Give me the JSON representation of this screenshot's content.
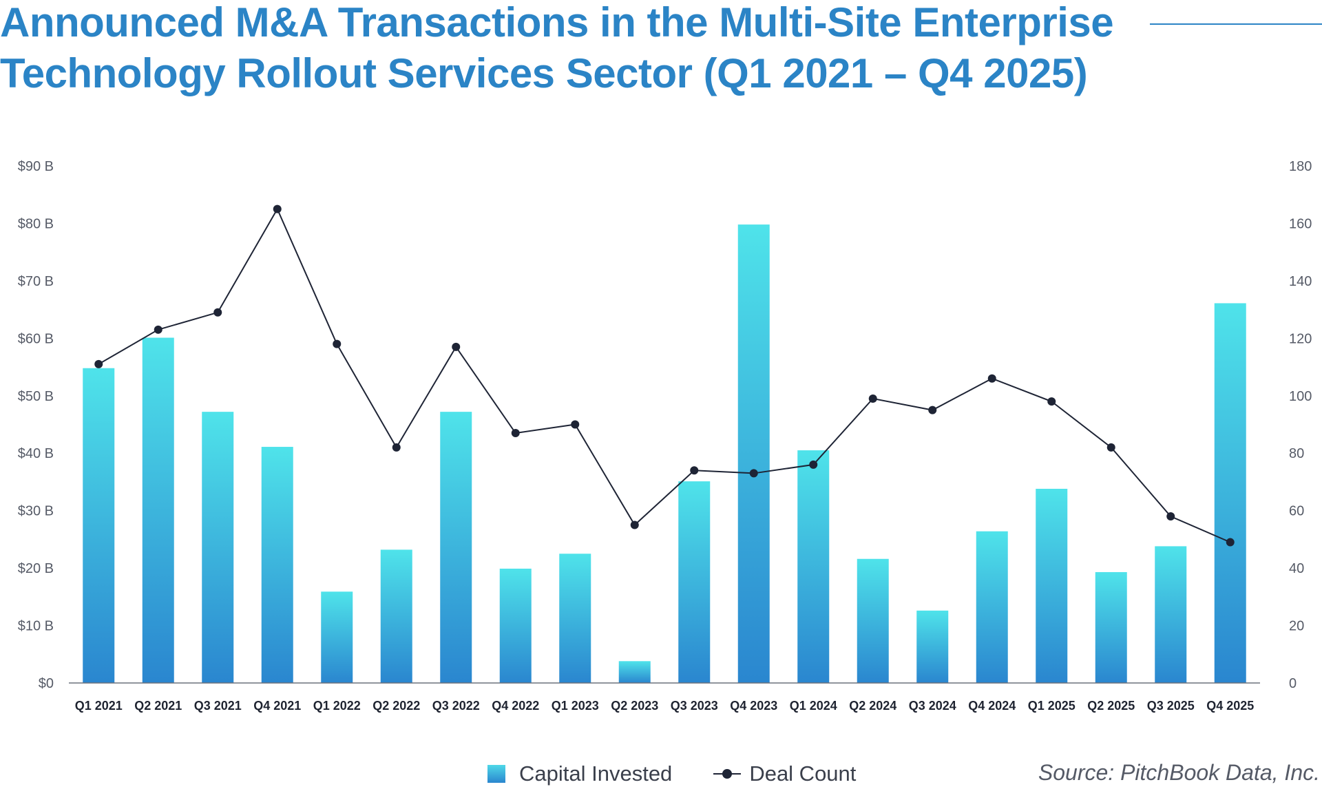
{
  "title": "Announced M&A Transactions in the Multi-Site Enterprise Technology Rollout Services Sector (Q1 2021 – Q4 2025)",
  "source": "Source: PitchBook Data, Inc.",
  "colors": {
    "title": "#2b84c6",
    "bar_top": "#4fe3ea",
    "bar_bottom": "#2a86cf",
    "line": "#1e2435"
  },
  "chart_data": {
    "type": "bar",
    "title": "Announced M&A Transactions in the Multi-Site Enterprise Technology Rollout Services Sector (Q1 2021 – Q4 2025)",
    "categories": [
      "Q1 2021",
      "Q2 2021",
      "Q3 2021",
      "Q4 2021",
      "Q1 2022",
      "Q2 2022",
      "Q3 2022",
      "Q4 2022",
      "Q1 2023",
      "Q2 2023",
      "Q3 2023",
      "Q4 2023",
      "Q1 2024",
      "Q2 2024",
      "Q3 2024",
      "Q4 2024",
      "Q1 2025",
      "Q2 2025",
      "Q3 2025",
      "Q4 2025"
    ],
    "series": [
      {
        "name": "Capital Invested",
        "type": "bar",
        "axis": "left",
        "unit": "$B",
        "values": [
          54.8,
          60.1,
          47.2,
          41.1,
          15.9,
          23.2,
          47.2,
          19.9,
          22.5,
          3.8,
          35.1,
          79.8,
          40.5,
          21.6,
          12.6,
          26.4,
          33.8,
          19.3,
          23.8,
          66.1
        ]
      },
      {
        "name": "Deal Count",
        "type": "line",
        "axis": "right",
        "values": [
          111,
          123,
          129,
          165,
          118,
          82,
          117,
          87,
          90,
          55,
          74,
          73,
          76,
          99,
          95,
          106,
          98,
          82,
          58,
          49
        ]
      }
    ],
    "y_left": {
      "ticks": [
        "$0",
        "$10 B",
        "$20 B",
        "$30 B",
        "$40 B",
        "$50 B",
        "$60 B",
        "$70 B",
        "$80 B",
        "$90 B"
      ],
      "ylim": [
        0,
        90
      ]
    },
    "y_right": {
      "ticks": [
        "0",
        "20",
        "40",
        "60",
        "80",
        "100",
        "120",
        "140",
        "160",
        "180"
      ],
      "ylim": [
        0,
        180
      ]
    },
    "legend": {
      "position": "bottom-center",
      "items": [
        "Capital Invested",
        "Deal Count"
      ]
    }
  }
}
